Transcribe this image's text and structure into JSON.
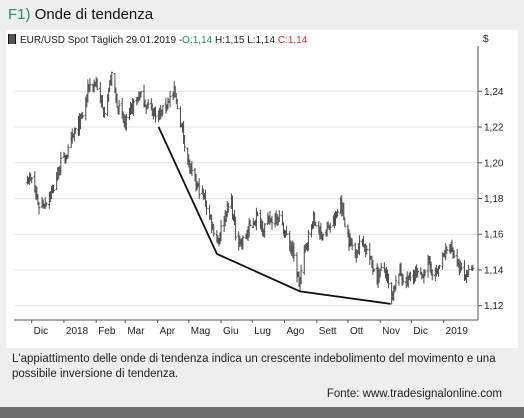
{
  "figure": {
    "number": "F1)",
    "title": "Onde di tendenza",
    "caption": "L'appiattimento delle onde di tendenza indica un crescente indebolimento del movimento e una possibile inversione di tendenza.",
    "source": "Fonte: www.tradesignalonline.com"
  },
  "legend": {
    "instrument": "EUR/USD Spot Täglich",
    "date": "29.01.2019",
    "separator": "-",
    "open": "O:1,14",
    "high": "H:1,15",
    "low": "L:1,14",
    "close": "C:1,14"
  },
  "colors": {
    "open": "#2e8b57",
    "close": "#d32f2f",
    "bars": "#4a4a4a",
    "trendline": "#111111",
    "grid": "#e3e3e3"
  },
  "chart_data": {
    "type": "ohlc",
    "currency_symbol": "$",
    "ylim": [
      1.112,
      1.262
    ],
    "y_ticks": [
      1.12,
      1.14,
      1.16,
      1.18,
      1.2,
      1.22,
      1.24
    ],
    "y_tick_labels": [
      "1,12",
      "1,14",
      "1,16",
      "1,18",
      "1,20",
      "1,22",
      "1,24"
    ],
    "x_tick_labels": [
      "Dic",
      "2018",
      "Feb",
      "Mar",
      "Apr",
      "Mag",
      "Giu",
      "Lug",
      "Ago",
      "Sett",
      "Ott",
      "Nov",
      "Dic",
      "2019"
    ],
    "price_path": [
      [
        "2017-11-25",
        1.193
      ],
      [
        "2017-12-01",
        1.19
      ],
      [
        "2017-12-08",
        1.176
      ],
      [
        "2017-12-14",
        1.178
      ],
      [
        "2017-12-22",
        1.186
      ],
      [
        "2017-12-29",
        1.2
      ],
      [
        "2018-01-05",
        1.206
      ],
      [
        "2018-01-12",
        1.218
      ],
      [
        "2018-01-18",
        1.224
      ],
      [
        "2018-01-25",
        1.243
      ],
      [
        "2018-02-01",
        1.245
      ],
      [
        "2018-02-08",
        1.228
      ],
      [
        "2018-02-16",
        1.248
      ],
      [
        "2018-02-22",
        1.231
      ],
      [
        "2018-03-01",
        1.221
      ],
      [
        "2018-03-08",
        1.232
      ],
      [
        "2018-03-15",
        1.238
      ],
      [
        "2018-03-22",
        1.232
      ],
      [
        "2018-03-28",
        1.229
      ],
      [
        "2018-04-04",
        1.227
      ],
      [
        "2018-04-11",
        1.235
      ],
      [
        "2018-04-17",
        1.239
      ],
      [
        "2018-04-25",
        1.218
      ],
      [
        "2018-05-02",
        1.196
      ],
      [
        "2018-05-09",
        1.187
      ],
      [
        "2018-05-16",
        1.18
      ],
      [
        "2018-05-22",
        1.168
      ],
      [
        "2018-05-29",
        1.156
      ],
      [
        "2018-06-05",
        1.172
      ],
      [
        "2018-06-11",
        1.178
      ],
      [
        "2018-06-15",
        1.16
      ],
      [
        "2018-06-21",
        1.155
      ],
      [
        "2018-06-28",
        1.163
      ],
      [
        "2018-07-05",
        1.17
      ],
      [
        "2018-07-12",
        1.164
      ],
      [
        "2018-07-19",
        1.168
      ],
      [
        "2018-07-26",
        1.171
      ],
      [
        "2018-08-02",
        1.16
      ],
      [
        "2018-08-09",
        1.15
      ],
      [
        "2018-08-15",
        1.132
      ],
      [
        "2018-08-22",
        1.155
      ],
      [
        "2018-08-29",
        1.168
      ],
      [
        "2018-09-05",
        1.16
      ],
      [
        "2018-09-12",
        1.163
      ],
      [
        "2018-09-19",
        1.168
      ],
      [
        "2018-09-24",
        1.179
      ],
      [
        "2018-10-01",
        1.158
      ],
      [
        "2018-10-08",
        1.15
      ],
      [
        "2018-10-15",
        1.157
      ],
      [
        "2018-10-22",
        1.146
      ],
      [
        "2018-10-29",
        1.137
      ],
      [
        "2018-11-05",
        1.141
      ],
      [
        "2018-11-12",
        1.123
      ],
      [
        "2018-11-19",
        1.139
      ],
      [
        "2018-11-26",
        1.133
      ],
      [
        "2018-12-03",
        1.138
      ],
      [
        "2018-12-10",
        1.136
      ],
      [
        "2018-12-17",
        1.144
      ],
      [
        "2018-12-24",
        1.137
      ],
      [
        "2018-12-31",
        1.146
      ],
      [
        "2019-01-07",
        1.154
      ],
      [
        "2019-01-10",
        1.151
      ],
      [
        "2019-01-15",
        1.141
      ],
      [
        "2019-01-22",
        1.136
      ],
      [
        "2019-01-29",
        1.143
      ]
    ],
    "trendline": [
      [
        "2018-04-02",
        1.22
      ],
      [
        "2018-05-28",
        1.149
      ],
      [
        "2018-08-16",
        1.128
      ],
      [
        "2018-11-11",
        1.121
      ]
    ],
    "grid": "horizontal",
    "legend_placement": "top-left"
  }
}
